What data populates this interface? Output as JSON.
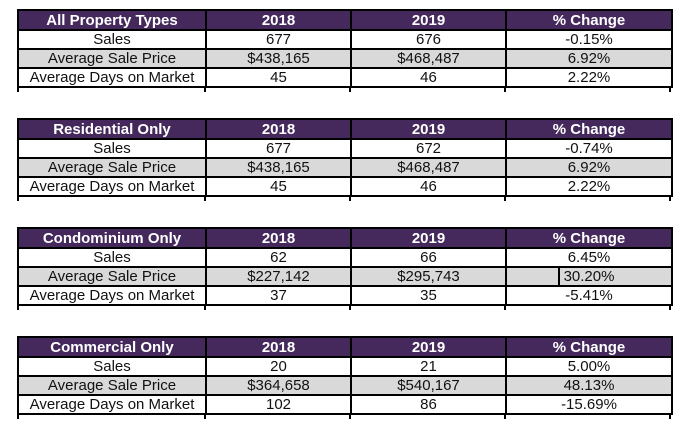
{
  "colors": {
    "header_bg": "#45295c",
    "header_text": "#ffffff",
    "alt_row_bg": "#d9d9d9",
    "border": "#000000",
    "text": "#111111",
    "page_bg": "#ffffff"
  },
  "chart_data": {
    "type": "table",
    "tables": [
      {
        "title": "All Property Types",
        "columns": [
          "2018",
          "2019",
          "% Change"
        ],
        "rows": [
          {
            "label": "Sales",
            "y2018": "677",
            "y2019": "676",
            "change": "-0.15%"
          },
          {
            "label": "Average Sale Price",
            "y2018": "$438,165",
            "y2019": "$468,487",
            "change": "6.92%"
          },
          {
            "label": "Average Days on Market",
            "y2018": "45",
            "y2019": "46",
            "change": "2.22%"
          }
        ]
      },
      {
        "title": "Residential Only",
        "columns": [
          "2018",
          "2019",
          "% Change"
        ],
        "rows": [
          {
            "label": "Sales",
            "y2018": "677",
            "y2019": "672",
            "change": "-0.74%"
          },
          {
            "label": "Average Sale Price",
            "y2018": "$438,165",
            "y2019": "$468,487",
            "change": "6.92%"
          },
          {
            "label": "Average Days on Market",
            "y2018": "45",
            "y2019": "46",
            "change": "2.22%"
          }
        ]
      },
      {
        "title": "Condominium Only",
        "columns": [
          "2018",
          "2019",
          "% Change"
        ],
        "rows": [
          {
            "label": "Sales",
            "y2018": "62",
            "y2019": "66",
            "change": "6.45%"
          },
          {
            "label": "Average Sale Price",
            "y2018": "$227,142",
            "y2019": "$295,743",
            "change": "30.20%"
          },
          {
            "label": "Average Days on Market",
            "y2018": "37",
            "y2019": "35",
            "change": "-5.41%"
          }
        ]
      },
      {
        "title": "Commercial Only",
        "columns": [
          "2018",
          "2019",
          "% Change"
        ],
        "rows": [
          {
            "label": "Sales",
            "y2018": "20",
            "y2019": "21",
            "change": "5.00%"
          },
          {
            "label": "Average Sale Price",
            "y2018": "$364,658",
            "y2019": "$540,167",
            "change": "48.13%"
          },
          {
            "label": "Average Days on Market",
            "y2018": "102",
            "y2019": "86",
            "change": "-15.69%"
          }
        ]
      }
    ]
  }
}
